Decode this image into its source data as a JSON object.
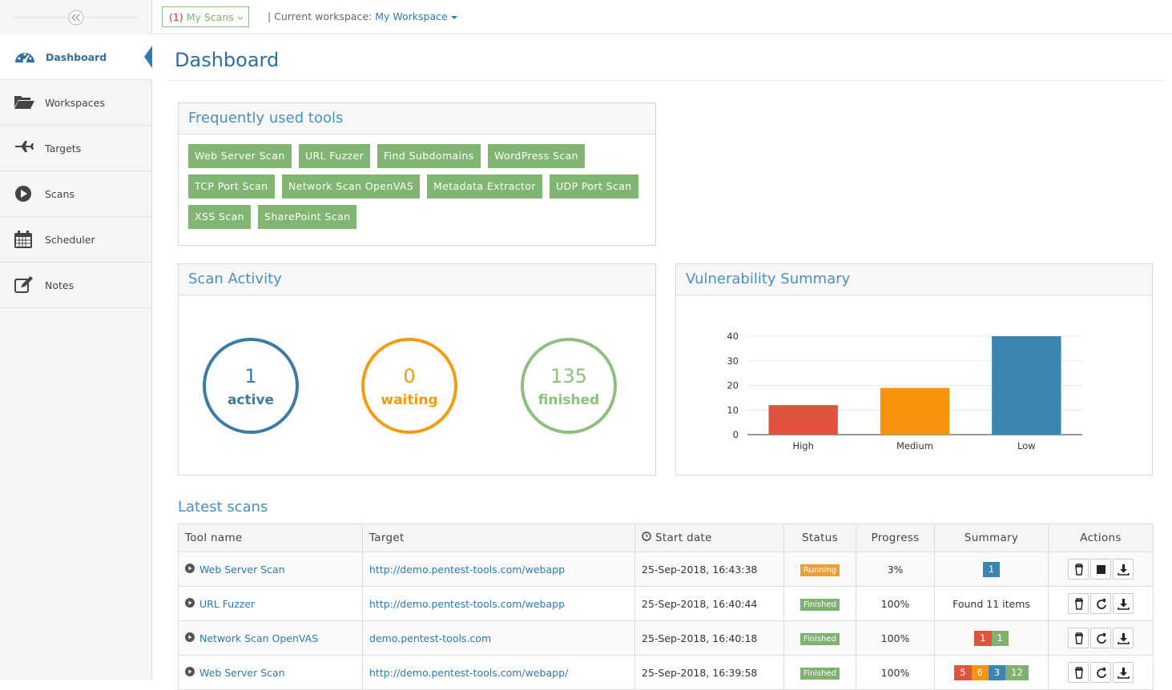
{
  "sidebar": {
    "items": [
      "Dashboard",
      "Workspaces",
      "Targets",
      "Scans",
      "Scheduler",
      "Notes"
    ]
  },
  "topbar": {
    "scan_count": "(1)",
    "scans_menu": "My Scans",
    "workspace_label": "| Current workspace:",
    "workspace": "My Workspace"
  },
  "page_title": "Dashboard",
  "tools": {
    "title": "Frequently used tools",
    "rows": [
      [
        "Web Server Scan",
        "URL Fuzzer",
        "Find Subdomains",
        "WordPress Scan"
      ],
      [
        "TCP Port Scan",
        "Network Scan OpenVAS",
        "Metadata Extractor",
        "UDP Port Scan"
      ],
      [
        "XSS Scan",
        "SharePoint Scan"
      ]
    ]
  },
  "scan_activity": {
    "title": "Scan Activity",
    "counters": [
      {
        "value": 1,
        "label": "active",
        "color": "#3a7ca5"
      },
      {
        "value": 0,
        "label": "waiting",
        "color": "#f39c12"
      },
      {
        "value": 135,
        "label": "finished",
        "color": "#8ebf7e"
      }
    ]
  },
  "vulnerability_summary": {
    "title": "Vulnerability Summary",
    "chart_data": {
      "type": "bar",
      "categories": [
        "High",
        "Medium",
        "Low"
      ],
      "values": [
        12,
        19,
        40
      ],
      "colors": [
        "#e0533f",
        "#f7940b",
        "#3b86b0"
      ],
      "ylim": [
        0,
        40
      ],
      "yticks": [
        0,
        10,
        20,
        30,
        40
      ],
      "grid": true
    }
  },
  "latest_scans": {
    "title": "Latest scans",
    "columns": [
      "Tool name",
      "Target",
      "Start date",
      "Status",
      "Progress",
      "Summary",
      "Actions"
    ],
    "rows": [
      {
        "tool": "Web Server Scan",
        "target": "http://demo.pentest-tools.com/webapp",
        "start": "25-Sep-2018, 16:43:38",
        "status": "Running",
        "status_color": "#f0a030",
        "progress": "3%",
        "summary": {
          "badges": [
            {
              "value": 1,
              "color": "#3b86b0"
            }
          ]
        }
      },
      {
        "tool": "URL Fuzzer",
        "target": "http://demo.pentest-tools.com/webapp",
        "start": "25-Sep-2018, 16:40:44",
        "status": "Finished",
        "status_color": "#7fb26f",
        "progress": "100%",
        "summary": {
          "text": "Found 11 items"
        }
      },
      {
        "tool": "Network Scan OpenVAS",
        "target": "demo.pentest-tools.com",
        "start": "25-Sep-2018, 16:40:18",
        "status": "Finished",
        "status_color": "#7fb26f",
        "progress": "100%",
        "summary": {
          "badges": [
            {
              "value": 1,
              "color": "#e0533f"
            },
            {
              "value": 1,
              "color": "#7fb26f"
            }
          ]
        }
      },
      {
        "tool": "Web Server Scan",
        "target": "http://demo.pentest-tools.com/webapp/",
        "start": "25-Sep-2018, 16:39:58",
        "status": "Finished",
        "status_color": "#7fb26f",
        "progress": "100%",
        "summary": {
          "badges": [
            {
              "value": 5,
              "color": "#e0533f"
            },
            {
              "value": 6,
              "color": "#f7940b"
            },
            {
              "value": 3,
              "color": "#3b86b0"
            },
            {
              "value": 12,
              "color": "#7fb26f"
            }
          ]
        }
      }
    ]
  }
}
